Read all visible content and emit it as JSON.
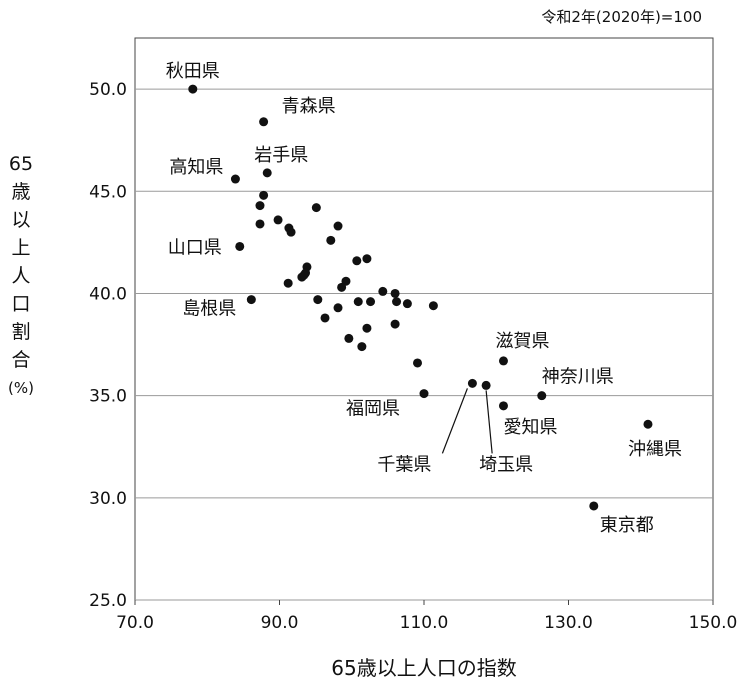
{
  "chart_data": {
    "type": "scatter",
    "note": "令和2年(2020年)=100",
    "xlabel": "65歳以上人口の指数",
    "ylabel": "65歳以上人口割合(%)",
    "xlim": [
      70,
      150
    ],
    "ylim": [
      25,
      52.5
    ],
    "xticks": [
      "70.0",
      "90.0",
      "110.0",
      "130.0",
      "150.0"
    ],
    "yticks": [
      "25.0",
      "30.0",
      "35.0",
      "40.0",
      "45.0",
      "50.0"
    ],
    "grid": "horizontal",
    "points": [
      {
        "x": 78.0,
        "y": 50.0,
        "label": "秋田県"
      },
      {
        "x": 87.8,
        "y": 48.4,
        "label": "青森県"
      },
      {
        "x": 88.3,
        "y": 45.9,
        "label": "岩手県"
      },
      {
        "x": 83.9,
        "y": 45.6,
        "label": "高知県"
      },
      {
        "x": 84.5,
        "y": 42.3,
        "label": "山口県"
      },
      {
        "x": 86.1,
        "y": 39.7,
        "label": "島根県"
      },
      {
        "x": 110.0,
        "y": 35.1,
        "label": "福岡県"
      },
      {
        "x": 121.0,
        "y": 36.7,
        "label": "滋賀県"
      },
      {
        "x": 126.3,
        "y": 35.0,
        "label": "神奈川県"
      },
      {
        "x": 121.0,
        "y": 34.5,
        "label": "愛知県"
      },
      {
        "x": 116.7,
        "y": 35.6,
        "label": "千葉県"
      },
      {
        "x": 118.6,
        "y": 35.5,
        "label": "埼玉県"
      },
      {
        "x": 141.0,
        "y": 33.6,
        "label": "沖縄県"
      },
      {
        "x": 133.5,
        "y": 29.6,
        "label": "東京都"
      },
      {
        "x": 87.8,
        "y": 44.8,
        "label": ""
      },
      {
        "x": 87.3,
        "y": 44.3,
        "label": ""
      },
      {
        "x": 87.3,
        "y": 43.4,
        "label": ""
      },
      {
        "x": 89.8,
        "y": 43.6,
        "label": ""
      },
      {
        "x": 91.3,
        "y": 43.2,
        "label": ""
      },
      {
        "x": 91.6,
        "y": 43.0,
        "label": ""
      },
      {
        "x": 95.1,
        "y": 44.2,
        "label": ""
      },
      {
        "x": 98.1,
        "y": 43.3,
        "label": ""
      },
      {
        "x": 97.1,
        "y": 42.6,
        "label": ""
      },
      {
        "x": 100.7,
        "y": 41.6,
        "label": ""
      },
      {
        "x": 102.1,
        "y": 41.7,
        "label": ""
      },
      {
        "x": 93.8,
        "y": 41.3,
        "label": ""
      },
      {
        "x": 93.6,
        "y": 41.0,
        "label": ""
      },
      {
        "x": 93.1,
        "y": 40.8,
        "label": ""
      },
      {
        "x": 93.4,
        "y": 40.9,
        "label": ""
      },
      {
        "x": 91.2,
        "y": 40.5,
        "label": ""
      },
      {
        "x": 99.2,
        "y": 40.6,
        "label": ""
      },
      {
        "x": 98.6,
        "y": 40.3,
        "label": ""
      },
      {
        "x": 104.3,
        "y": 40.1,
        "label": ""
      },
      {
        "x": 106.0,
        "y": 40.0,
        "label": ""
      },
      {
        "x": 95.3,
        "y": 39.7,
        "label": ""
      },
      {
        "x": 100.9,
        "y": 39.6,
        "label": ""
      },
      {
        "x": 102.6,
        "y": 39.6,
        "label": ""
      },
      {
        "x": 106.2,
        "y": 39.6,
        "label": ""
      },
      {
        "x": 107.7,
        "y": 39.5,
        "label": ""
      },
      {
        "x": 111.3,
        "y": 39.4,
        "label": ""
      },
      {
        "x": 98.1,
        "y": 39.3,
        "label": ""
      },
      {
        "x": 96.3,
        "y": 38.8,
        "label": ""
      },
      {
        "x": 106.0,
        "y": 38.5,
        "label": ""
      },
      {
        "x": 102.1,
        "y": 38.3,
        "label": ""
      },
      {
        "x": 99.6,
        "y": 37.8,
        "label": ""
      },
      {
        "x": 101.4,
        "y": 37.4,
        "label": ""
      },
      {
        "x": 109.1,
        "y": 36.6,
        "label": ""
      }
    ]
  }
}
